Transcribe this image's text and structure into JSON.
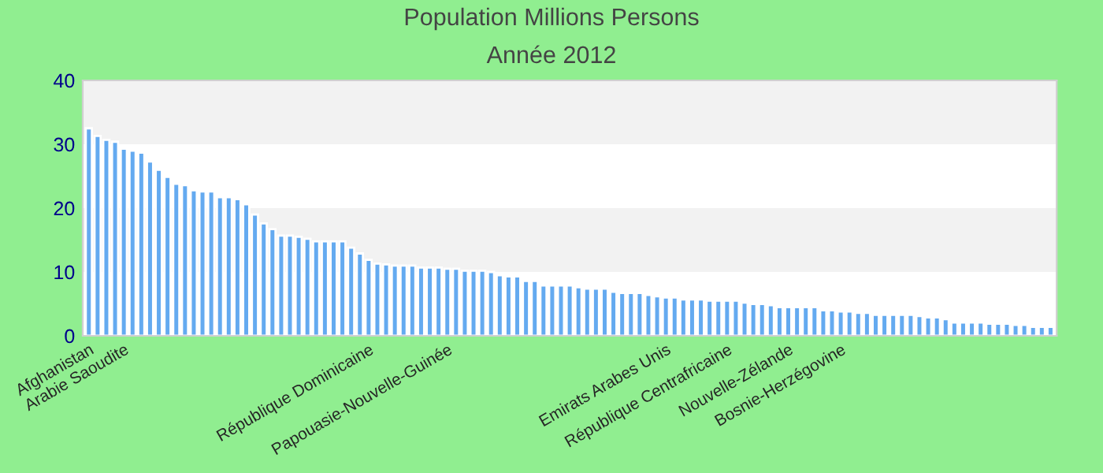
{
  "chart_data": {
    "type": "bar",
    "title": "Population Millions Persons",
    "subtitle": "Année 2012",
    "categories": [
      "Afghanistan",
      null,
      null,
      null,
      "Arabie Saoudite",
      null,
      null,
      null,
      null,
      null,
      null,
      null,
      null,
      null,
      null,
      null,
      null,
      null,
      null,
      null,
      null,
      null,
      null,
      null,
      null,
      null,
      null,
      null,
      null,
      null,
      null,
      null,
      "République Dominicaine",
      null,
      null,
      null,
      null,
      null,
      null,
      null,
      null,
      "Papouasie-Nouvelle-Guinée",
      null,
      null,
      null,
      null,
      null,
      null,
      null,
      null,
      null,
      null,
      null,
      null,
      null,
      null,
      null,
      null,
      null,
      null,
      null,
      null,
      null,
      null,
      null,
      null,
      "Emirats Arabes Unis",
      null,
      null,
      null,
      null,
      null,
      null,
      "République Centrafricaine",
      null,
      null,
      null,
      null,
      null,
      null,
      "Nouvelle-Zélande",
      null,
      null,
      null,
      null,
      null,
      "Bosnie-Herzégovine",
      null,
      null,
      null,
      null,
      null,
      null,
      null,
      null,
      null,
      null,
      null,
      null,
      null,
      null,
      null,
      null,
      null,
      null,
      null,
      null,
      null,
      null,
      null,
      null
    ],
    "values": [
      32.5,
      31.3,
      30.7,
      30.4,
      29.3,
      29.0,
      28.7,
      27.3,
      26.0,
      24.9,
      23.8,
      23.6,
      22.8,
      22.6,
      22.6,
      21.7,
      21.7,
      21.4,
      20.6,
      19.0,
      17.6,
      16.7,
      15.7,
      15.7,
      15.5,
      15.2,
      14.8,
      14.8,
      14.8,
      14.8,
      13.8,
      12.9,
      11.9,
      11.3,
      11.2,
      11.0,
      11.0,
      11.0,
      10.7,
      10.7,
      10.7,
      10.5,
      10.5,
      10.2,
      10.2,
      10.2,
      10.0,
      9.5,
      9.3,
      9.3,
      8.6,
      8.6,
      7.9,
      7.9,
      7.9,
      7.9,
      7.6,
      7.4,
      7.4,
      7.4,
      6.9,
      6.7,
      6.7,
      6.7,
      6.4,
      6.2,
      6.0,
      6.0,
      5.7,
      5.7,
      5.7,
      5.5,
      5.5,
      5.5,
      5.5,
      5.2,
      5.0,
      5.0,
      4.8,
      4.5,
      4.5,
      4.5,
      4.5,
      4.5,
      4.0,
      4.0,
      3.8,
      3.8,
      3.6,
      3.6,
      3.3,
      3.3,
      3.3,
      3.3,
      3.3,
      3.1,
      2.9,
      2.9,
      2.6,
      2.1,
      2.1,
      2.1,
      2.1,
      1.9,
      1.9,
      1.9,
      1.7,
      1.7,
      1.4,
      1.4,
      1.4
    ],
    "color": "#64aaf0",
    "ylim": [
      0,
      40
    ],
    "yticks": [
      0,
      10,
      20,
      30,
      40
    ],
    "grid": false,
    "bands": [
      {
        "axis": "y",
        "from": 10,
        "to": 20,
        "color": "#f2f2f2"
      },
      {
        "axis": "y",
        "from": 30,
        "to": 40,
        "color": "#f2f2f2"
      }
    ]
  }
}
